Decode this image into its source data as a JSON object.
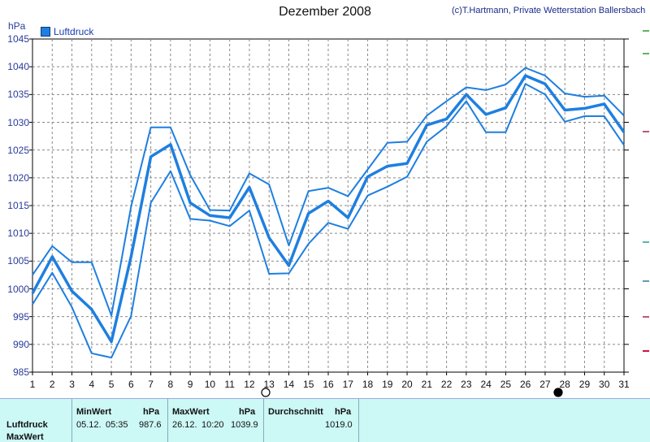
{
  "header": {
    "title": "Dezember 2008",
    "credit": "(c)T.Hartmann, Private Wetterstation Ballersbach",
    "unit": "hPa",
    "legend_label": "Luftdruck"
  },
  "colors": {
    "series": "#1e7fe0",
    "grid": "#888888",
    "axis": "#000000",
    "panel_bg": "#ccf8f6"
  },
  "chart_data": {
    "type": "line",
    "title": "Dezember 2008",
    "ylabel": "hPa",
    "ylim": [
      985,
      1045
    ],
    "y_ticks": [
      985,
      990,
      995,
      1000,
      1005,
      1010,
      1015,
      1020,
      1025,
      1030,
      1035,
      1040,
      1045
    ],
    "x": [
      1,
      2,
      3,
      4,
      5,
      6,
      7,
      8,
      9,
      10,
      11,
      12,
      13,
      14,
      15,
      16,
      17,
      18,
      19,
      20,
      21,
      22,
      23,
      24,
      25,
      26,
      27,
      28,
      29,
      30,
      31
    ],
    "grid": true,
    "legend_position": "top-left",
    "series": [
      {
        "name": "Luftdruck",
        "role": "max",
        "values": [
          1002.5,
          1007.7,
          1004.8,
          1004.8,
          995.2,
          1014.8,
          1029.1,
          1029.1,
          1020.5,
          1014.2,
          1014.1,
          1020.8,
          1018.8,
          1007.8,
          1017.6,
          1018.2,
          1016.7,
          1021.5,
          1026.3,
          1026.5,
          1031.2,
          1033.8,
          1036.3,
          1035.8,
          1036.8,
          1039.8,
          1038.4,
          1035.2,
          1034.6,
          1034.8,
          1031.2
        ]
      },
      {
        "name": "Luftdruck",
        "role": "avg",
        "values": [
          999.2,
          1005.8,
          999.6,
          996.3,
          990.5,
          1005.8,
          1023.8,
          1026.0,
          1015.5,
          1013.2,
          1012.8,
          1018.3,
          1009.2,
          1004.2,
          1013.6,
          1015.8,
          1012.8,
          1020.2,
          1022.1,
          1022.6,
          1029.5,
          1030.6,
          1035.0,
          1031.4,
          1032.6,
          1038.4,
          1036.9,
          1032.2,
          1032.5,
          1033.3,
          1028.2
        ]
      },
      {
        "name": "Luftdruck",
        "role": "min",
        "values": [
          997.2,
          1002.9,
          996.7,
          988.4,
          987.6,
          995.1,
          1015.5,
          1021.2,
          1012.6,
          1012.3,
          1011.3,
          1014.1,
          1002.7,
          1002.8,
          1008.1,
          1011.9,
          1010.8,
          1016.8,
          1018.4,
          1020.2,
          1026.5,
          1029.3,
          1033.8,
          1028.2,
          1028.2,
          1036.9,
          1035.0,
          1030.1,
          1031.1,
          1031.1,
          1025.9
        ]
      }
    ]
  },
  "stats": {
    "row_labels": [
      "Luftdruck",
      "MaxWert"
    ],
    "min_header": "MinWert",
    "min_unit": "hPa",
    "min_date": "05.12.",
    "min_time": "05:35",
    "min_value": "987.6",
    "max_header": "MaxWert",
    "max_unit": "hPa",
    "max_date": "26.12.",
    "max_time": "10:20",
    "max_value": "1039.9",
    "avg_header": "Durchschnitt",
    "avg_unit": "hPa",
    "avg_value": "1019.0"
  }
}
